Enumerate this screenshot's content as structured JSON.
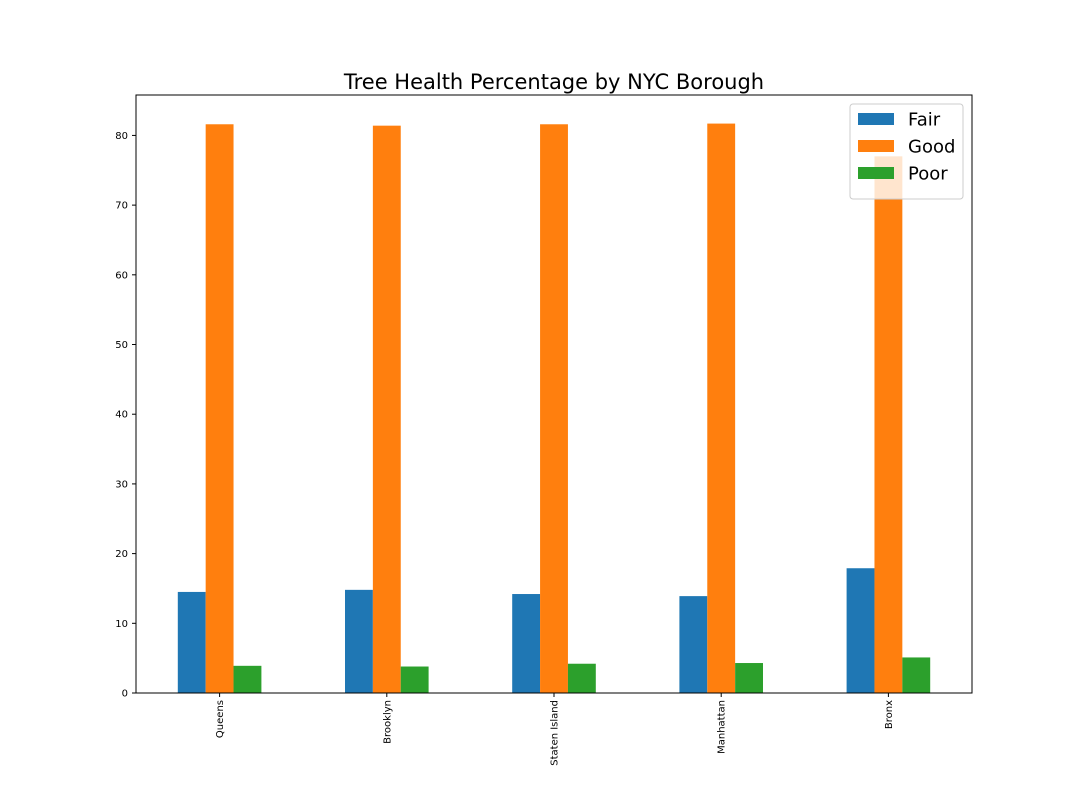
{
  "chart_data": {
    "type": "bar",
    "title": "Tree Health Percentage by NYC Borough",
    "xlabel": "",
    "ylabel": "",
    "categories": [
      "Queens",
      "Brooklyn",
      "Staten Island",
      "Manhattan",
      "Bronx"
    ],
    "series": [
      {
        "name": "Fair",
        "color": "#1f77b4",
        "values": [
          14.5,
          14.8,
          14.2,
          13.9,
          17.9
        ]
      },
      {
        "name": "Good",
        "color": "#ff7f0e",
        "values": [
          81.6,
          81.4,
          81.6,
          81.7,
          77.0
        ]
      },
      {
        "name": "Poor",
        "color": "#2ca02c",
        "values": [
          3.9,
          3.8,
          4.2,
          4.3,
          5.1
        ]
      }
    ],
    "ylim": [
      0,
      85.8
    ],
    "yticks": [
      "0",
      "10",
      "20",
      "30",
      "40",
      "50",
      "60",
      "70",
      "80"
    ],
    "grid": false,
    "legend_position": "top-right"
  }
}
